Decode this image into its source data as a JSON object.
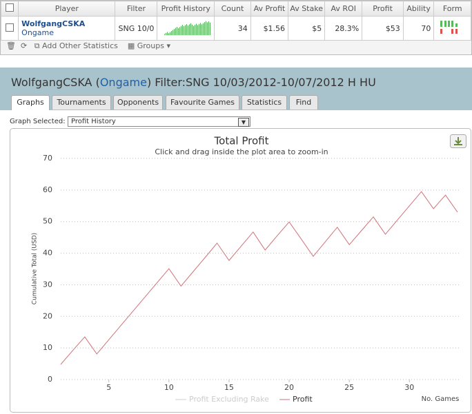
{
  "top_table": {
    "headers": [
      "Player",
      "Filter",
      "Profit History",
      "Count",
      "Av Profit",
      "Av Stake",
      "Av ROI",
      "Profit",
      "Ability",
      "Form"
    ],
    "row": {
      "player": "WolfgangCSKA",
      "site": "Ongame",
      "filter": "SNG 10/0",
      "count": 34,
      "av_profit": "$1.56",
      "av_stake": "$5",
      "av_roi": "28.3%",
      "profit": "$53",
      "ability": 70
    }
  },
  "toolbar": {
    "add_stats": "Add Other Statistics",
    "groups": "Groups"
  },
  "panel": {
    "title_player": "WolfgangCSKA (",
    "title_site": "Ongame",
    "title_filter": ") Filter:SNG 10/03/2012-10/07/2012 H HU",
    "tabs": [
      "Graphs",
      "Tournaments",
      "Opponents",
      "Favourite Games",
      "Statistics",
      "Find"
    ],
    "graph_selected_label": "Graph Selected:",
    "graph_selected": "Profit History"
  },
  "chart_data": {
    "type": "line",
    "title": "Total Profit",
    "subtitle": "Click and drag inside the plot area to zoom-in",
    "y_label": "Cumulative Total (USD)",
    "x_label": "No. Games",
    "x": [
      1,
      2,
      3,
      4,
      5,
      6,
      7,
      8,
      9,
      10,
      11,
      12,
      13,
      14,
      15,
      16,
      17,
      18,
      19,
      20,
      21,
      22,
      23,
      24,
      25,
      26,
      27,
      28,
      29,
      30,
      31,
      32,
      33,
      34
    ],
    "series": [
      {
        "name": "Profit",
        "color": "#d0727a",
        "values": [
          4.8,
          9.2,
          13.5,
          8.1,
          12.6,
          17.1,
          21.6,
          26.1,
          30.6,
          35.1,
          29.6,
          34.1,
          38.6,
          43.2,
          37.7,
          42.2,
          46.7,
          41.0,
          45.5,
          49.9,
          44.5,
          39.0,
          43.6,
          48.2,
          42.7,
          47.1,
          51.5,
          46.0,
          50.5,
          55.0,
          59.5,
          54.1,
          58.4,
          53.0
        ]
      }
    ],
    "inactive_legend": {
      "name": "Profit Excluding Rake",
      "color": "#cccccc"
    },
    "xlim": [
      1,
      34
    ],
    "xticks": [
      5,
      10,
      15,
      20,
      25,
      30
    ],
    "ylim": [
      0,
      70
    ],
    "yticks": [
      0,
      10,
      20,
      30,
      40,
      50,
      60,
      70
    ],
    "grid": true
  }
}
